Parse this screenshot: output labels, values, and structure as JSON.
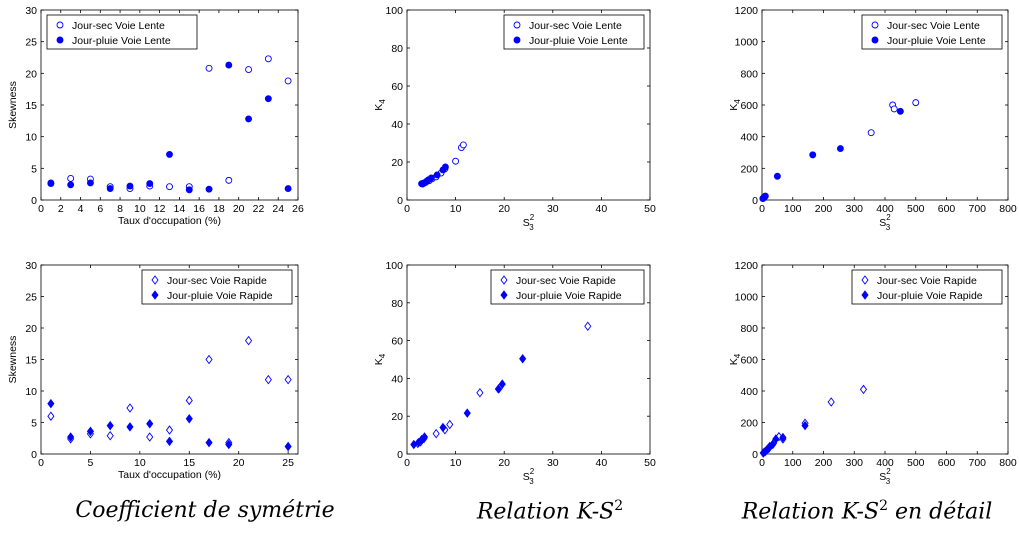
{
  "captions": {
    "left": "Coefficient de symétrie",
    "middle": "Relation K-S",
    "middle_sup": "2",
    "right": "Relation K-S",
    "right_sup": "2",
    "right_suffix": " en détail"
  },
  "colors": {
    "series": "#0000ff",
    "axes": "#000000"
  },
  "chart_data": [
    {
      "type": "scatter",
      "id": "skew-lente",
      "xlabel": "Taux d'occupation (%)",
      "ylabel": "Skewness",
      "xlim": [
        0,
        26
      ],
      "ylim": [
        0,
        30
      ],
      "xticks": [
        0,
        2,
        4,
        6,
        8,
        10,
        12,
        14,
        16,
        18,
        20,
        22,
        24,
        26
      ],
      "yticks": [
        0,
        5,
        10,
        15,
        20,
        25,
        30
      ],
      "legend_position": "top-left",
      "series": [
        {
          "name": "Jour-sec Voie Lente",
          "marker": "circle-open",
          "x": [
            1,
            3,
            5,
            7,
            9,
            11,
            13,
            15,
            17,
            19,
            21,
            23,
            25
          ],
          "y": [
            2.6,
            3.4,
            3.3,
            2.1,
            1.8,
            2.2,
            2.1,
            2.1,
            20.8,
            3.1,
            20.6,
            22.3,
            18.8
          ]
        },
        {
          "name": "Jour-pluie Voie Lente",
          "marker": "circle-filled",
          "x": [
            1,
            3,
            5,
            7,
            9,
            11,
            13,
            15,
            17,
            19,
            21,
            23,
            25
          ],
          "y": [
            2.7,
            2.4,
            2.7,
            1.8,
            2.2,
            2.6,
            7.2,
            1.6,
            1.7,
            21.3,
            12.8,
            16.0,
            1.8
          ]
        }
      ]
    },
    {
      "type": "scatter",
      "id": "ks-lente",
      "xlabel": "S",
      "xlabel_sub": "3",
      "xlabel_sup": "2",
      "ylabel": "K",
      "ylabel_sub": "4",
      "xlim": [
        0,
        50
      ],
      "ylim": [
        0,
        100
      ],
      "xticks": [
        0,
        10,
        20,
        30,
        40,
        50
      ],
      "yticks": [
        0,
        20,
        40,
        60,
        80,
        100
      ],
      "legend_position": "top-right",
      "series": [
        {
          "name": "Jour-sec Voie Lente",
          "marker": "circle-open",
          "x": [
            3.2,
            3.6,
            4.0,
            4.6,
            5.2,
            6.0,
            7.0,
            7.8,
            10.0,
            11.2,
            11.6
          ],
          "y": [
            8.4,
            9.0,
            9.8,
            10.2,
            11.2,
            12.2,
            14.2,
            16.4,
            20.4,
            27.6,
            29.0
          ]
        },
        {
          "name": "Jour-pluie Voie Lente",
          "marker": "circle-filled",
          "x": [
            3.0,
            3.4,
            3.9,
            4.4,
            5.0,
            6.2,
            7.4,
            7.9
          ],
          "y": [
            8.6,
            8.9,
            9.4,
            10.6,
            11.6,
            13.2,
            15.8,
            17.4
          ]
        }
      ]
    },
    {
      "type": "scatter",
      "id": "ks-lente-detail",
      "xlabel": "S",
      "xlabel_sub": "3",
      "xlabel_sup": "2",
      "ylabel": "K",
      "ylabel_sub": "4",
      "xlim": [
        0,
        800
      ],
      "ylim": [
        0,
        1200
      ],
      "xticks": [
        0,
        100,
        200,
        300,
        400,
        500,
        600,
        700,
        800
      ],
      "yticks": [
        0,
        200,
        400,
        600,
        800,
        1000,
        1200
      ],
      "legend_position": "top-right",
      "series": [
        {
          "name": "Jour-sec Voie Lente",
          "marker": "circle-open",
          "x": [
            3,
            5,
            8,
            11,
            355,
            425,
            430,
            500
          ],
          "y": [
            10,
            14,
            18,
            25,
            425,
            600,
            575,
            615
          ]
        },
        {
          "name": "Jour-pluie Voie Lente",
          "marker": "circle-filled",
          "x": [
            3,
            6,
            9,
            50,
            165,
            255,
            450
          ],
          "y": [
            9,
            15,
            22,
            150,
            285,
            325,
            560
          ]
        }
      ]
    },
    {
      "type": "scatter",
      "id": "skew-rapide",
      "xlabel": "Taux d'occupation (%)",
      "ylabel": "Skewness",
      "xlim": [
        0,
        26
      ],
      "ylim": [
        0,
        30
      ],
      "xticks": [
        0,
        5,
        10,
        15,
        20,
        25
      ],
      "yticks": [
        0,
        5,
        10,
        15,
        20,
        25,
        30
      ],
      "legend_position": "top-right",
      "series": [
        {
          "name": "Jour-sec Voie Rapide",
          "marker": "diamond-open",
          "x": [
            1,
            3,
            5,
            7,
            9,
            11,
            13,
            15,
            17,
            19,
            21,
            23,
            25
          ],
          "y": [
            6.0,
            2.4,
            3.2,
            2.9,
            7.3,
            2.7,
            3.8,
            8.5,
            15.0,
            1.8,
            18.0,
            11.8,
            11.8
          ]
        },
        {
          "name": "Jour-pluie Voie Rapide",
          "marker": "diamond-filled",
          "x": [
            1,
            3,
            5,
            7,
            9,
            11,
            13,
            15,
            17,
            19,
            25
          ],
          "y": [
            8.0,
            2.7,
            3.6,
            4.5,
            4.3,
            4.8,
            2.0,
            5.6,
            1.8,
            1.5,
            1.2
          ]
        }
      ]
    },
    {
      "type": "scatter",
      "id": "ks-rapide",
      "xlabel": "S",
      "xlabel_sub": "3",
      "xlabel_sup": "2",
      "ylabel": "K",
      "ylabel_sub": "4",
      "xlim": [
        0,
        50
      ],
      "ylim": [
        0,
        100
      ],
      "xticks": [
        0,
        10,
        20,
        30,
        40,
        50
      ],
      "yticks": [
        0,
        20,
        40,
        60,
        80,
        100
      ],
      "legend_position": "top-right",
      "series": [
        {
          "name": "Jour-sec Voie Rapide",
          "marker": "diamond-open",
          "x": [
            2.2,
            2.8,
            3.5,
            6.0,
            7.8,
            8.8,
            15.0,
            19.0,
            37.2
          ],
          "y": [
            5.6,
            6.4,
            8.2,
            10.8,
            12.8,
            15.6,
            32.4,
            34.8,
            67.6
          ]
        },
        {
          "name": "Jour-pluie Voie Rapide",
          "marker": "diamond-filled",
          "x": [
            1.4,
            2.4,
            3.0,
            3.6,
            7.4,
            12.4,
            18.8,
            19.6,
            23.8
          ],
          "y": [
            5.0,
            6.0,
            7.6,
            9.0,
            14.0,
            21.6,
            34.4,
            37.0,
            50.4
          ]
        }
      ]
    },
    {
      "type": "scatter",
      "id": "ks-rapide-detail",
      "xlabel": "S",
      "xlabel_sub": "3",
      "xlabel_sup": "2",
      "ylabel": "K",
      "ylabel_sub": "4",
      "xlim": [
        0,
        800
      ],
      "ylim": [
        0,
        1200
      ],
      "xticks": [
        0,
        100,
        200,
        300,
        400,
        500,
        600,
        700,
        800
      ],
      "yticks": [
        0,
        200,
        400,
        600,
        800,
        1000,
        1200
      ],
      "legend_position": "top-right",
      "series": [
        {
          "name": "Jour-sec Voie Rapide",
          "marker": "diamond-open",
          "x": [
            5,
            12,
            22,
            38,
            55,
            68,
            140,
            225,
            330
          ],
          "y": [
            8,
            18,
            35,
            70,
            110,
            95,
            195,
            330,
            410
          ]
        },
        {
          "name": "Jour-pluie Voie Rapide",
          "marker": "diamond-filled",
          "x": [
            4,
            10,
            18,
            25,
            35,
            45,
            68,
            140
          ],
          "y": [
            6,
            15,
            32,
            48,
            60,
            95,
            105,
            180
          ]
        }
      ]
    }
  ]
}
